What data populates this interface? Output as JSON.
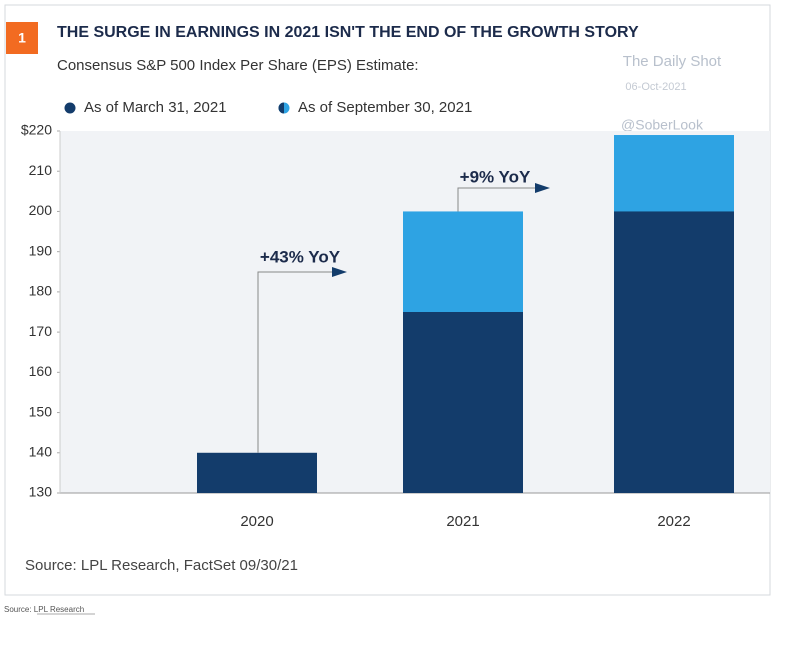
{
  "badge": "1",
  "watermark": [
    "The Daily Shot",
    "06-Oct-2021",
    "@SoberLook"
  ],
  "footer": "Source: LPL Research",
  "chart_data": {
    "type": "bar",
    "title": "THE SURGE IN EARNINGS IN 2021 ISN'T THE END OF THE GROWTH STORY",
    "subtitle": "Consensus S&P 500 Index Per Share (EPS) Estimate:",
    "categories": [
      "2020",
      "2021",
      "2022"
    ],
    "series": [
      {
        "name": "As of September 30, 2021",
        "color": "#2ea3e3",
        "values": [
          null,
          200,
          219
        ]
      },
      {
        "name": "As of March 31, 2021",
        "color": "#133c6b",
        "values": [
          140,
          175,
          200
        ]
      }
    ],
    "ylim": [
      130,
      220
    ],
    "yticks": [
      130,
      140,
      150,
      160,
      170,
      180,
      190,
      200,
      210,
      {
        "value": 220,
        "label": "$220"
      }
    ],
    "annotations": [
      "+43% YoY",
      "+9% YoY"
    ],
    "source": "Source: LPL Research, FactSet  09/30/21"
  }
}
